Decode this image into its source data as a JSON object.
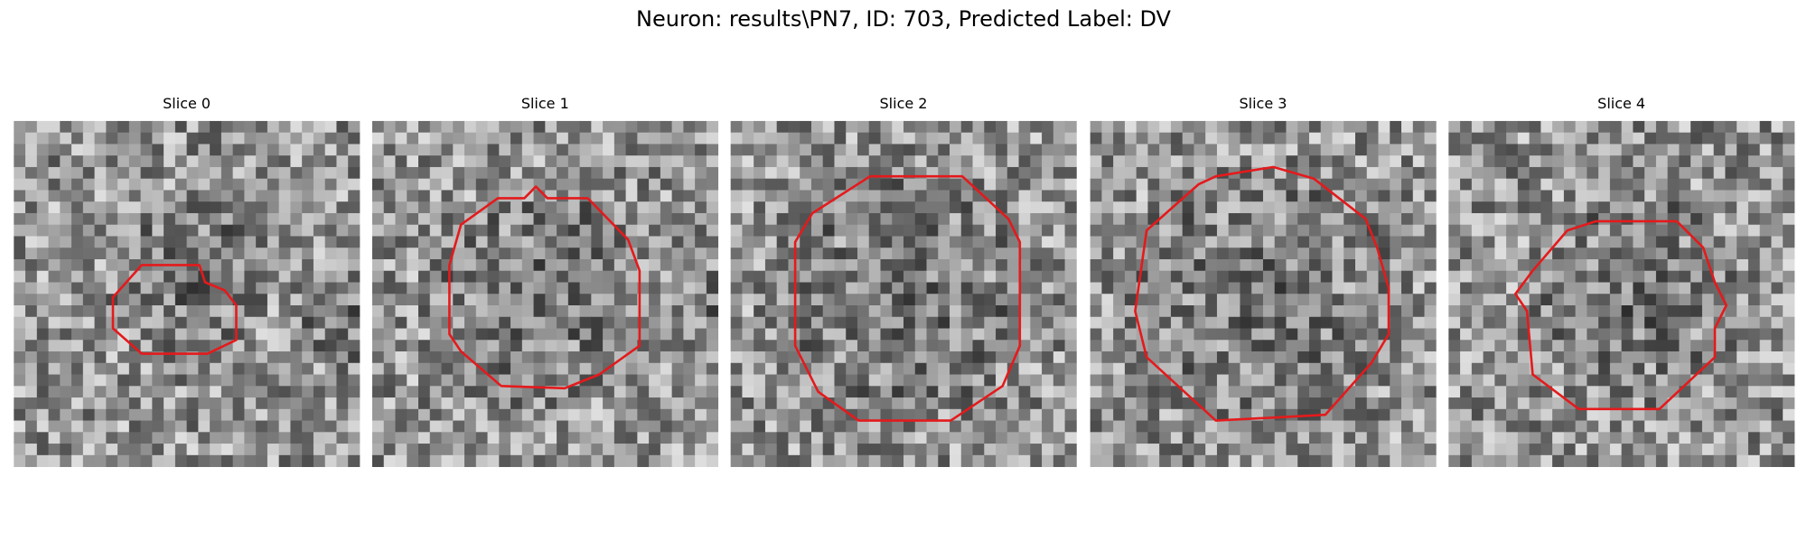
{
  "figure": {
    "title": "Neuron: results\\PN7, ID: 703, Predicted Label: DV",
    "panels": [
      {
        "title": "Slice 0"
      },
      {
        "title": "Slice 1"
      },
      {
        "title": "Slice 2"
      },
      {
        "title": "Slice 3"
      },
      {
        "title": "Slice 4"
      }
    ]
  }
}
